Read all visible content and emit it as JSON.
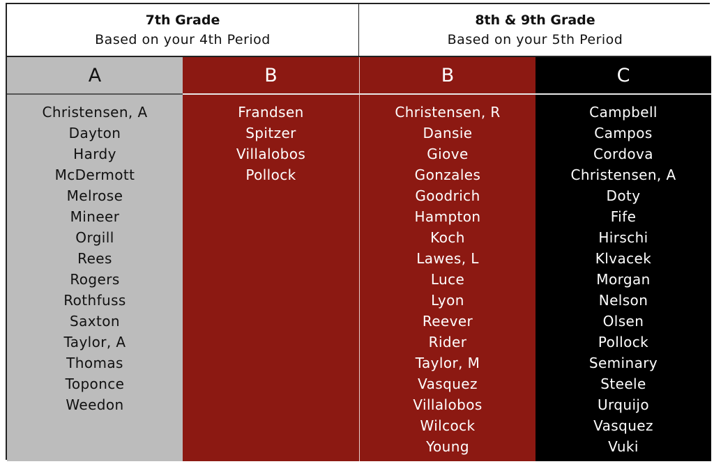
{
  "headers": {
    "left": {
      "title": "7th Grade",
      "subtitle": "Based on your 4th Period"
    },
    "right": {
      "title": "8th & 9th Grade",
      "subtitle": "Based on your 5th Period"
    }
  },
  "columns": [
    {
      "label": "A",
      "color": "#bcbcbc",
      "names": [
        "Christensen, A",
        "Dayton",
        "Hardy",
        "McDermott",
        "Melrose",
        "Mineer",
        "Orgill",
        "Rees",
        "Rogers",
        "Rothfuss",
        "Saxton",
        "Taylor, A",
        "Thomas",
        "Toponce",
        "Weedon"
      ]
    },
    {
      "label": "B",
      "color": "#8c1912",
      "names": [
        "Frandsen",
        "Spitzer",
        "Villalobos",
        "Pollock"
      ]
    },
    {
      "label": "B",
      "color": "#8c1912",
      "names": [
        "Christensen, R",
        "Dansie",
        "Giove",
        "Gonzales",
        "Goodrich",
        "Hampton",
        "Koch",
        "Lawes, L",
        "Luce",
        "Lyon",
        "Reever",
        "Rider",
        "Taylor, M",
        "Vasquez",
        "Villalobos",
        "Wilcock",
        "Young"
      ]
    },
    {
      "label": "C",
      "color": "#000000",
      "names": [
        "Campbell",
        "Campos",
        "Cordova",
        "Christensen, A",
        "Doty",
        "Fife",
        "Hirschi",
        "Klvacek",
        "Morgan",
        "Nelson",
        "Olsen",
        "Pollock",
        "Seminary",
        "Steele",
        "Urquijo",
        "Vasquez",
        "Vuki"
      ]
    }
  ]
}
